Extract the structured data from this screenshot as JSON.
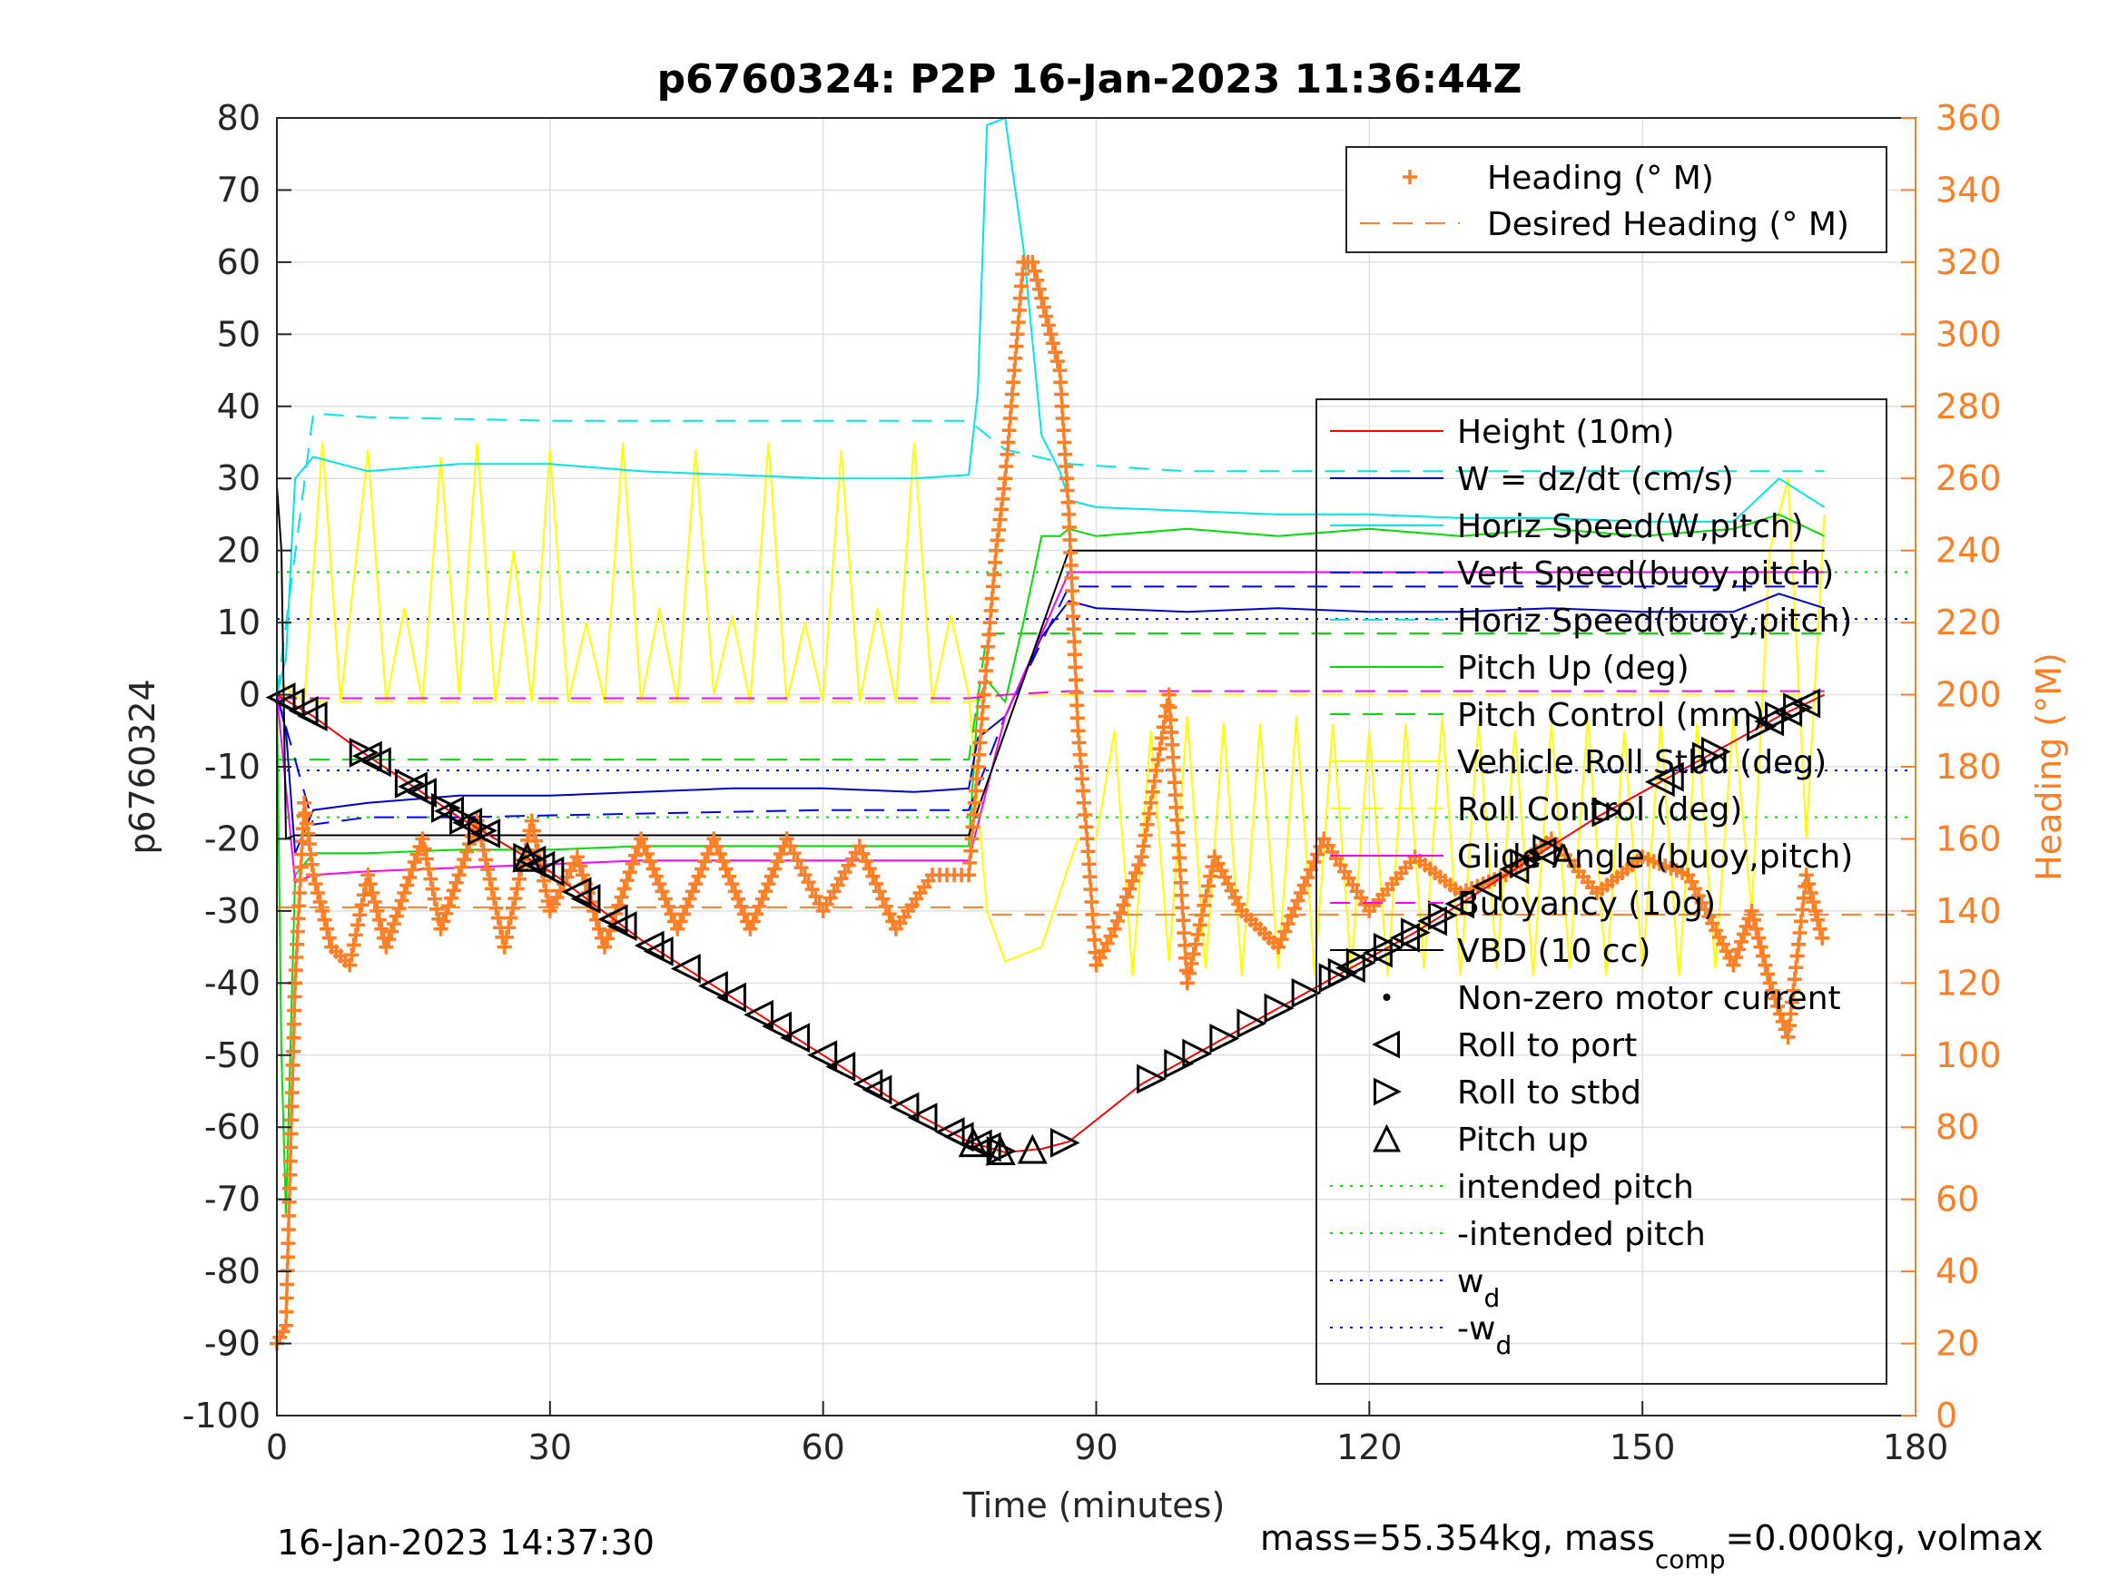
{
  "chart_data": {
    "type": "line",
    "title": "p6760324: P2P 16-Jan-2023 11:36:44Z",
    "xlabel": "Time (minutes)",
    "ylabel_left": "p6760324",
    "ylabel_right": "Heading (°M)",
    "xlim": [
      0,
      180
    ],
    "ylim_left": [
      -100,
      80
    ],
    "ylim_right": [
      0,
      360
    ],
    "x_ticks": [
      "0",
      "30",
      "60",
      "90",
      "120",
      "150",
      "180"
    ],
    "y_ticks_left": [
      "80",
      "70",
      "60",
      "50",
      "40",
      "30",
      "20",
      "10",
      "0",
      "-10",
      "-20",
      "-30",
      "-40",
      "-50",
      "-60",
      "-70",
      "-80",
      "-90",
      "-100"
    ],
    "y_ticks_right": [
      "360",
      "340",
      "320",
      "300",
      "280",
      "260",
      "240",
      "220",
      "200",
      "180",
      "160",
      "140",
      "120",
      "100",
      "80",
      "60",
      "40",
      "20",
      "0"
    ],
    "grid": true,
    "footer_left": "16-Jan-2023 14:37:30",
    "footer_right": "mass=55.354kg, mass",
    "footer_right_sub": "comp",
    "footer_right_tail": "=0.000kg, volmax",
    "legend_heading": {
      "placement": "top-right",
      "entries": [
        "Heading (° M)",
        "Desired Heading (° M)"
      ]
    },
    "legend_main": {
      "placement": "right",
      "entries": [
        "Height (10m)",
        "W = dz/dt (cm/s)",
        "Horiz Speed(W,pitch)",
        "Vert Speed(buoy,pitch)",
        "Horiz Speed(buoy,pitch)",
        "Pitch Up (deg)",
        "Pitch Control (mm)",
        "Vehicle Roll Stbd (deg)",
        "Roll Control (deg)",
        "Glide Angle (buoy,pitch)",
        "Buoyancy (10g)",
        "VBD (10 cc)",
        "Non-zero motor current",
        "Roll to port",
        "Roll to stbd",
        "Pitch up",
        "intended pitch",
        "-intended pitch",
        "w",
        "-w"
      ],
      "subscript": "d"
    },
    "colors": {
      "height": "#ff0000",
      "w": "#0000cc",
      "horiz_speed_w": "#00e5e5",
      "vert_speed_buoy": "#0000ff",
      "horiz_speed_buoy": "#00e5e5",
      "pitch_up": "#00dd00",
      "pitch_control": "#00dd00",
      "roll": "#ffff00",
      "roll_control": "#ffff00",
      "glide": "#ff00ff",
      "buoyancy": "#ff00ff",
      "vbd": "#000000",
      "heading": "#ff7f27",
      "intended_pitch": "#00dd00",
      "wd": "#0000ff"
    },
    "series": [
      {
        "name": "Height (10m)",
        "x": [
          0,
          4,
          10,
          20,
          30,
          40,
          50,
          60,
          70,
          76,
          80,
          84,
          87,
          95,
          105,
          115,
          125,
          135,
          145,
          155,
          165,
          170
        ],
        "values": [
          0,
          -3,
          -8.5,
          -17,
          -24.5,
          -34,
          -42,
          -50,
          -58,
          -62,
          -63.5,
          -63,
          -62,
          -54,
          -47,
          -40,
          -33,
          -25,
          -17,
          -10,
          -3,
          0
        ]
      },
      {
        "name": "W = dz/dt (cm/s)",
        "x": [
          0,
          1,
          2,
          4,
          10,
          20,
          30,
          40,
          50,
          60,
          70,
          76,
          77,
          80,
          84,
          87,
          90,
          100,
          110,
          120,
          130,
          140,
          150,
          160,
          165,
          170
        ],
        "values": [
          0,
          -5,
          -22,
          -16,
          -15,
          -14,
          -14,
          -13.5,
          -13,
          -13,
          -13.5,
          -13,
          -6,
          -3,
          8,
          13,
          12,
          11.5,
          12,
          11.5,
          11.5,
          12,
          11.5,
          11.5,
          14,
          12
        ]
      },
      {
        "name": "Horiz Speed(W,pitch)",
        "x": [
          0,
          1,
          2,
          4,
          10,
          20,
          30,
          40,
          50,
          60,
          70,
          76,
          77,
          78,
          80,
          82,
          84,
          86,
          87,
          90,
          100,
          110,
          120,
          130,
          140,
          150,
          160,
          165,
          170
        ],
        "values": [
          0,
          5,
          30,
          33,
          31,
          32,
          32,
          31,
          30.5,
          30,
          30,
          30.5,
          42,
          79,
          80,
          62,
          36,
          31,
          27,
          26,
          25.5,
          25,
          25,
          24.5,
          24.5,
          24,
          24,
          30,
          26
        ]
      },
      {
        "name": "Vert Speed(buoy,pitch)",
        "x": [
          0,
          4,
          10,
          20,
          40,
          60,
          76,
          80,
          87,
          100,
          120,
          140,
          160,
          170
        ],
        "values": [
          0,
          -18,
          -17,
          -17,
          -16.5,
          -16,
          -16,
          -3,
          15,
          15,
          15,
          15,
          15,
          15
        ]
      },
      {
        "name": "Horiz Speed(buoy,pitch)",
        "x": [
          0,
          4,
          10,
          30,
          60,
          76,
          80,
          87,
          100,
          130,
          160,
          170
        ],
        "values": [
          0,
          39,
          38.5,
          38,
          38,
          38,
          34,
          32,
          31,
          31,
          31,
          31
        ]
      },
      {
        "name": "Pitch Up (deg)",
        "x": [
          0,
          0.5,
          1,
          2,
          4,
          10,
          20,
          30,
          40,
          50,
          60,
          70,
          76,
          77,
          78,
          80,
          82,
          84,
          86,
          87,
          90,
          100,
          110,
          120,
          130,
          140,
          150,
          160,
          165,
          170
        ],
        "values": [
          0,
          -50,
          -72,
          -25,
          -22,
          -22,
          -21.5,
          -21.5,
          -21,
          -21,
          -21,
          -21,
          -21,
          -1,
          2,
          -1,
          10,
          22,
          22,
          23,
          22,
          23,
          22,
          23,
          22,
          23,
          22,
          23,
          25,
          22
        ]
      },
      {
        "name": "Pitch Control (mm)",
        "x": [
          0,
          4,
          76,
          78,
          170
        ],
        "values": [
          -9,
          -9,
          -9,
          8.5,
          8.5
        ]
      },
      {
        "name": "Roll Control (deg)",
        "x": [
          0,
          4,
          76,
          80,
          87,
          170
        ],
        "values": [
          0,
          -1,
          -1,
          0,
          0,
          0
        ]
      },
      {
        "name": "Glide Angle (buoy,pitch)",
        "x": [
          0,
          2,
          4,
          10,
          20,
          30,
          40,
          60,
          76,
          80,
          87,
          100,
          120,
          140,
          160,
          170
        ],
        "values": [
          0,
          -26,
          -25,
          -24.5,
          -24,
          -23.5,
          -23,
          -23,
          -23,
          -3,
          17,
          17,
          17,
          17,
          17,
          17
        ]
      },
      {
        "name": "Buoyancy (10g)",
        "x": [
          0,
          4,
          76,
          80,
          87,
          170
        ],
        "values": [
          -0.5,
          -0.5,
          -0.5,
          0,
          0.5,
          0.5
        ]
      },
      {
        "name": "VBD (10 cc)",
        "x": [
          0,
          0.5,
          1,
          2,
          4,
          20,
          40,
          60,
          76,
          87,
          100,
          130,
          160,
          170
        ],
        "values": [
          29,
          20,
          -20,
          -19.5,
          -19.5,
          -19.5,
          -19.5,
          -19.5,
          -19.5,
          20,
          20,
          20,
          20,
          20
        ]
      },
      {
        "name": "Heading (° M)",
        "x": [
          0,
          1,
          2,
          3,
          4,
          6,
          8,
          10,
          12,
          14,
          16,
          18,
          20,
          22,
          25,
          28,
          30,
          33,
          36,
          40,
          44,
          48,
          52,
          56,
          60,
          64,
          68,
          72,
          76,
          77,
          78,
          79,
          80,
          81,
          82,
          83,
          84,
          85,
          86,
          87,
          88,
          89,
          90,
          92,
          95,
          98,
          100,
          103,
          106,
          110,
          115,
          120,
          125,
          130,
          135,
          140,
          145,
          150,
          155,
          160,
          162,
          164,
          166,
          168,
          170
        ],
        "values": [
          20,
          25,
          120,
          170,
          150,
          130,
          125,
          150,
          130,
          145,
          160,
          135,
          150,
          165,
          130,
          165,
          140,
          155,
          130,
          160,
          135,
          160,
          135,
          160,
          140,
          158,
          135,
          150,
          150,
          180,
          210,
          240,
          260,
          290,
          320,
          320,
          310,
          300,
          290,
          250,
          190,
          160,
          125,
          135,
          155,
          200,
          120,
          155,
          140,
          130,
          160,
          140,
          155,
          145,
          150,
          160,
          145,
          155,
          150,
          125,
          140,
          120,
          105,
          150,
          130
        ]
      },
      {
        "name": "Desired Heading (° M)",
        "x": [
          0,
          78,
          78.5,
          180
        ],
        "values": [
          141,
          141,
          139,
          139
        ]
      },
      {
        "name": "intended pitch",
        "x": [
          0,
          180
        ],
        "values": [
          17,
          17
        ]
      },
      {
        "name": "-intended pitch",
        "x": [
          0,
          180
        ],
        "values": [
          -17,
          -17
        ]
      },
      {
        "name": "w",
        "x": [
          0,
          180
        ],
        "values": [
          10.5,
          10.5
        ]
      },
      {
        "name": "-w",
        "x": [
          0,
          180
        ],
        "values": [
          -10.5,
          -10.5
        ]
      }
    ],
    "roll_to_port_x": [
      0.5,
      1.5,
      3,
      4,
      10,
      11,
      15,
      16,
      19,
      21,
      23,
      28,
      29,
      30,
      33,
      34,
      37,
      38,
      41,
      42,
      45,
      48,
      50,
      53,
      55,
      57,
      60,
      62,
      65,
      66,
      69,
      71,
      74,
      75,
      77,
      78,
      118,
      121,
      124,
      127,
      130,
      133,
      136,
      139,
      152,
      153,
      164,
      166,
      168
    ],
    "roll_to_stbd_x": [
      9.5,
      14.5,
      18.5,
      20.5,
      22.5,
      27.5,
      79.5,
      86.5,
      96,
      99,
      101,
      104,
      107,
      110,
      113,
      116,
      117,
      119,
      122,
      125,
      128,
      137,
      139.5,
      146,
      157,
      158,
      163,
      165,
      167
    ],
    "pitch_up_x": [
      27.5,
      76.5,
      79.5,
      83
    ],
    "roll_trace_x": [
      0,
      3,
      5,
      7,
      10,
      12,
      14,
      16,
      18,
      20,
      22,
      24,
      26,
      28,
      30,
      32,
      34,
      36,
      38,
      40,
      42,
      44,
      46,
      48,
      50,
      52,
      54,
      56,
      58,
      60,
      62,
      64,
      66,
      68,
      70,
      72,
      74,
      76,
      78,
      80,
      84,
      88,
      90,
      92,
      94,
      96,
      98,
      100,
      102,
      104,
      106,
      108,
      110,
      112,
      114,
      116,
      118,
      120,
      122,
      124,
      126,
      128,
      130,
      132,
      134,
      136,
      138,
      140,
      142,
      144,
      146,
      148,
      150,
      152,
      154,
      156,
      158,
      160,
      162,
      164,
      166,
      168,
      170
    ],
    "roll_trace_values": [
      2,
      -1,
      35,
      -1,
      34,
      -1,
      12,
      -1,
      33,
      0,
      35,
      -1,
      20,
      -1,
      34,
      -1,
      10,
      -1,
      35,
      -1,
      12,
      -1,
      34,
      0,
      11,
      -1,
      35,
      -1,
      10,
      -1,
      34,
      -1,
      12,
      -1,
      35,
      -1,
      11,
      0,
      -30,
      -37,
      -35,
      -20,
      -20,
      -5,
      -39,
      -5,
      -37,
      -3,
      -38,
      -4,
      -39,
      -4,
      -38,
      -3,
      -39,
      -4,
      -38,
      -5,
      -39,
      -4,
      -38,
      -3,
      -39,
      -4,
      -38,
      -5,
      -39,
      -4,
      -38,
      -3,
      -39,
      -5,
      -38,
      -4,
      -39,
      -4,
      -38,
      -3,
      -30,
      20,
      30,
      -20,
      25
    ]
  }
}
